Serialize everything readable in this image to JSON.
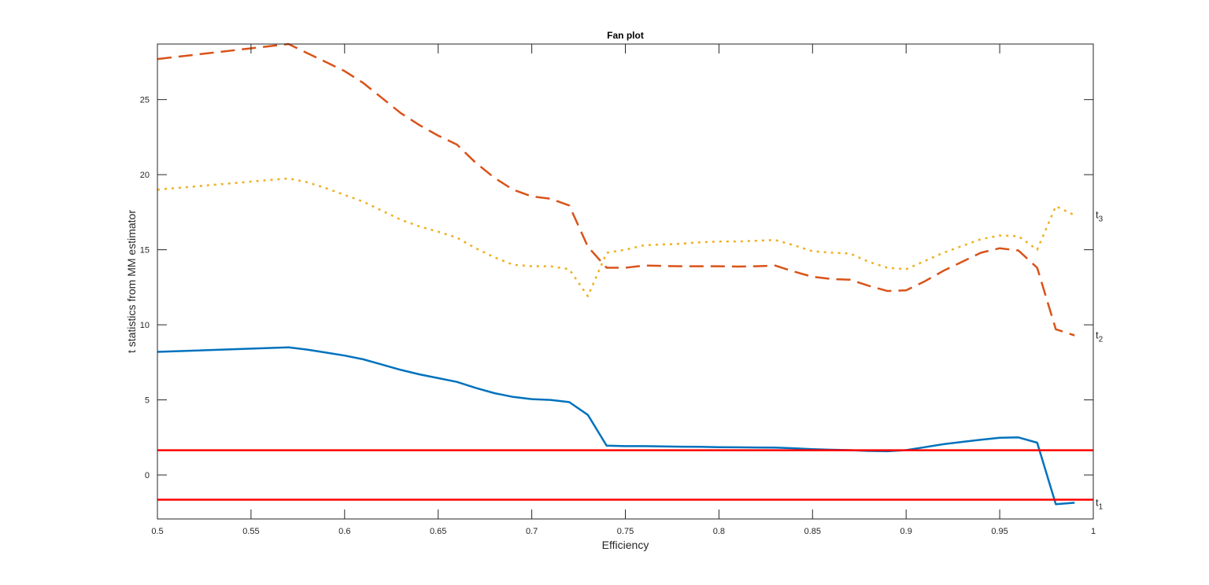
{
  "chart_data": {
    "type": "line",
    "title": "Fan plot",
    "xlabel": "Efficiency",
    "ylabel": "t statistics from MM estimator",
    "xlim": [
      0.5,
      1.0
    ],
    "ylim": [
      -2.93,
      28.7
    ],
    "grid": false,
    "xticks": [
      0.5,
      0.55,
      0.6,
      0.65,
      0.7,
      0.75,
      0.8,
      0.85,
      0.9,
      0.95,
      1
    ],
    "xtick_labels": [
      "0.5",
      "0.55",
      "0.6",
      "0.65",
      "0.7",
      "0.75",
      "0.8",
      "0.85",
      "0.9",
      "0.95",
      "1"
    ],
    "yticks": [
      0,
      5,
      10,
      15,
      20,
      25
    ],
    "ytick_labels": [
      "0",
      "5",
      "10",
      "15",
      "20",
      "25"
    ],
    "x": [
      0.5,
      0.57,
      0.58,
      0.59,
      0.6,
      0.61,
      0.62,
      0.63,
      0.64,
      0.65,
      0.66,
      0.67,
      0.68,
      0.69,
      0.7,
      0.71,
      0.72,
      0.73,
      0.74,
      0.75,
      0.76,
      0.77,
      0.78,
      0.79,
      0.8,
      0.81,
      0.82,
      0.83,
      0.84,
      0.85,
      0.86,
      0.87,
      0.88,
      0.89,
      0.9,
      0.91,
      0.92,
      0.93,
      0.94,
      0.95,
      0.96,
      0.97,
      0.98,
      0.99
    ],
    "series": [
      {
        "name": "t1",
        "label_text": "t",
        "label_sub": "1",
        "color": "#0072BD",
        "style": "solid",
        "values": [
          8.2,
          8.5,
          8.35,
          8.15,
          7.95,
          7.7,
          7.35,
          7.0,
          6.7,
          6.45,
          6.2,
          5.8,
          5.45,
          5.2,
          5.05,
          5.0,
          4.85,
          4.0,
          1.95,
          1.92,
          1.92,
          1.9,
          1.88,
          1.87,
          1.85,
          1.84,
          1.83,
          1.82,
          1.78,
          1.72,
          1.68,
          1.65,
          1.6,
          1.58,
          1.65,
          1.85,
          2.05,
          2.2,
          2.35,
          2.48,
          2.5,
          2.15,
          -1.95,
          -1.85
        ]
      },
      {
        "name": "t2",
        "label_text": "t",
        "label_sub": "2",
        "color": "#D95319",
        "style": "dashed",
        "values": [
          27.7,
          28.7,
          28.1,
          27.5,
          26.9,
          26.1,
          25.1,
          24.1,
          23.3,
          22.6,
          22.0,
          20.8,
          19.8,
          19.0,
          18.55,
          18.4,
          17.95,
          15.2,
          13.8,
          13.8,
          13.95,
          13.92,
          13.9,
          13.9,
          13.9,
          13.88,
          13.9,
          13.95,
          13.55,
          13.2,
          13.05,
          13.0,
          12.6,
          12.25,
          12.3,
          12.9,
          13.6,
          14.2,
          14.8,
          15.1,
          14.95,
          13.8,
          9.7,
          9.3
        ]
      },
      {
        "name": "t3",
        "label_text": "t",
        "label_sub": "3",
        "color": "#EDB120",
        "style": "dotted",
        "values": [
          19.0,
          19.75,
          19.5,
          19.1,
          18.65,
          18.2,
          17.6,
          17.0,
          16.55,
          16.2,
          15.8,
          15.1,
          14.5,
          14.0,
          13.9,
          13.9,
          13.7,
          11.9,
          14.8,
          15.0,
          15.3,
          15.35,
          15.4,
          15.5,
          15.55,
          15.55,
          15.6,
          15.65,
          15.3,
          14.9,
          14.8,
          14.75,
          14.2,
          13.8,
          13.7,
          14.25,
          14.8,
          15.25,
          15.7,
          15.95,
          15.9,
          15.0,
          17.9,
          17.3
        ]
      }
    ],
    "reference_lines": [
      {
        "name": "upper-threshold",
        "y": 1.645,
        "color": "#FF0000"
      },
      {
        "name": "lower-threshold",
        "y": -1.645,
        "color": "#FF0000"
      }
    ]
  }
}
